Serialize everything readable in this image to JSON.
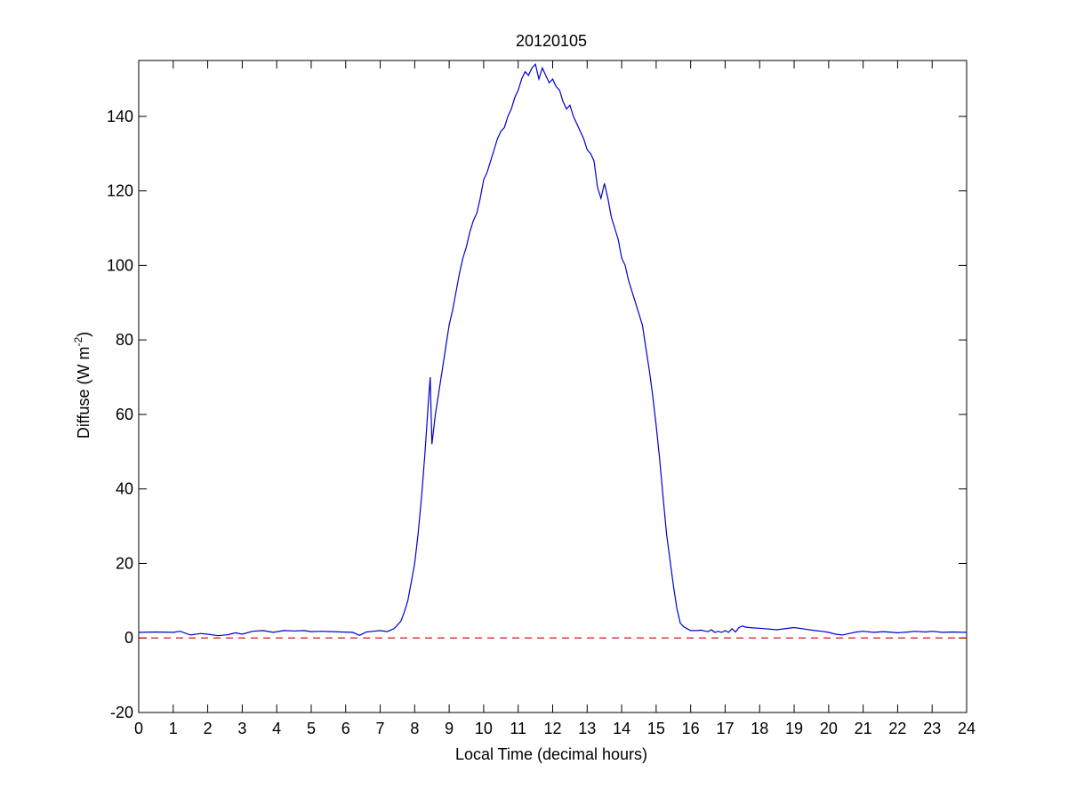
{
  "chart_data": {
    "type": "line",
    "title": "20120105",
    "xlabel": "Local Time (decimal hours)",
    "ylabel": {
      "prefix": "Diffuse (W m",
      "superscript": "-2",
      "suffix": ")"
    },
    "xlim": [
      0,
      24
    ],
    "ylim": [
      -20,
      155
    ],
    "x_ticks": [
      0,
      1,
      2,
      3,
      4,
      5,
      6,
      7,
      8,
      9,
      10,
      11,
      12,
      13,
      14,
      15,
      16,
      17,
      18,
      19,
      20,
      21,
      22,
      23,
      24
    ],
    "y_ticks": [
      -20,
      0,
      20,
      40,
      60,
      80,
      100,
      120,
      140
    ],
    "grid": false,
    "series": [
      {
        "color": "#0000cc",
        "line_style": "solid",
        "x": [
          0,
          0.5,
          1,
          1.2,
          1.5,
          1.8,
          2,
          2.3,
          2.6,
          2.8,
          3,
          3.3,
          3.6,
          3.9,
          4.2,
          4.5,
          4.8,
          5,
          5.3,
          5.6,
          5.9,
          6.2,
          6.4,
          6.6,
          6.8,
          7,
          7.2,
          7.4,
          7.6,
          7.7,
          7.8,
          7.9,
          8,
          8.1,
          8.2,
          8.3,
          8.4,
          8.45,
          8.5,
          8.6,
          8.7,
          8.8,
          8.9,
          9,
          9.1,
          9.2,
          9.3,
          9.4,
          9.5,
          9.6,
          9.7,
          9.8,
          9.9,
          10,
          10.1,
          10.2,
          10.3,
          10.4,
          10.5,
          10.6,
          10.7,
          10.8,
          10.9,
          11,
          11.1,
          11.2,
          11.3,
          11.4,
          11.5,
          11.6,
          11.7,
          11.8,
          11.9,
          12,
          12.1,
          12.2,
          12.3,
          12.4,
          12.5,
          12.6,
          12.7,
          12.8,
          12.9,
          13,
          13.1,
          13.2,
          13.3,
          13.4,
          13.5,
          13.6,
          13.7,
          13.8,
          13.9,
          14,
          14.1,
          14.2,
          14.3,
          14.4,
          14.5,
          14.6,
          14.7,
          14.8,
          14.9,
          15,
          15.1,
          15.2,
          15.3,
          15.4,
          15.5,
          15.6,
          15.7,
          15.8,
          15.9,
          16,
          16.1,
          16.2,
          16.3,
          16.4,
          16.5,
          16.6,
          16.7,
          16.8,
          16.9,
          17,
          17.1,
          17.2,
          17.3,
          17.4,
          17.5,
          17.6,
          17.8,
          18,
          18.5,
          19,
          19.3,
          19.6,
          19.8,
          20,
          20.2,
          20.4,
          20.6,
          20.8,
          21,
          21.3,
          21.6,
          22,
          22.3,
          22.5,
          22.8,
          23,
          23.3,
          23.6,
          24
        ],
        "y": [
          1.5,
          1.6,
          1.5,
          1.8,
          0.8,
          1.2,
          1.0,
          0.6,
          0.9,
          1.4,
          1.0,
          1.8,
          2.0,
          1.5,
          2.0,
          1.9,
          2.0,
          1.7,
          1.8,
          1.7,
          1.6,
          1.5,
          0.7,
          1.6,
          1.8,
          2.0,
          1.7,
          2.5,
          4.5,
          7,
          10,
          15,
          20,
          28,
          38,
          50,
          64,
          70,
          52,
          60,
          66,
          72,
          78,
          84,
          88,
          93,
          98,
          102,
          105,
          109,
          112,
          114,
          118,
          123,
          125,
          128,
          131,
          134,
          136,
          137,
          140,
          142,
          145,
          147,
          150,
          152,
          151,
          153,
          154,
          150,
          153,
          151,
          149,
          150,
          148,
          147,
          144,
          142,
          143,
          140,
          138,
          136,
          134,
          131,
          130,
          128,
          121,
          118,
          122,
          118,
          113,
          110,
          107,
          102,
          100,
          96,
          93,
          90,
          87,
          84,
          78,
          72,
          65,
          57,
          48,
          38,
          28,
          21,
          14,
          8,
          4,
          3,
          2.5,
          2,
          2,
          2,
          2.1,
          1.9,
          1.7,
          2.2,
          1.5,
          1.8,
          1.5,
          2.0,
          1.5,
          2.5,
          1.6,
          2.8,
          3.2,
          2.9,
          2.7,
          2.6,
          2.2,
          2.8,
          2.4,
          2.0,
          1.8,
          1.5,
          1.0,
          0.8,
          1.2,
          1.6,
          1.8,
          1.5,
          1.7,
          1.4,
          1.6,
          1.8,
          1.6,
          1.8,
          1.5,
          1.6,
          1.5
        ]
      },
      {
        "color": "#cc0000",
        "line_style": "dashed",
        "x": [
          0,
          24
        ],
        "y": [
          0,
          0
        ]
      }
    ]
  }
}
